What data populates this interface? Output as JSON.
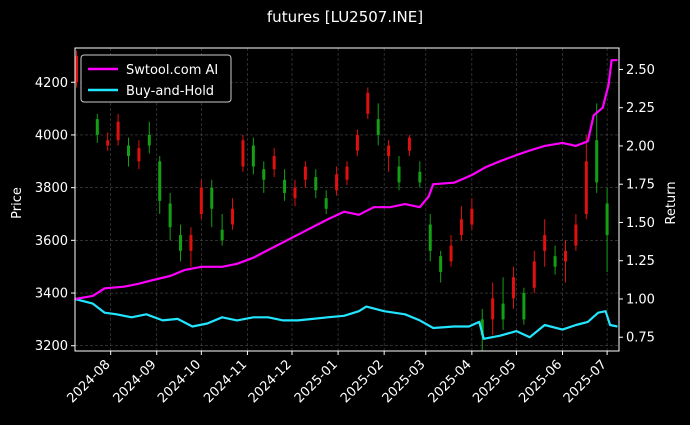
{
  "chart_data": {
    "type": "line",
    "title": "futures [LU2507.INE]",
    "ylabel_left": "Price",
    "ylabel_right": "Return",
    "xlabel": "",
    "x_ticks": [
      "2024-08",
      "2024-09",
      "2024-10",
      "2024-11",
      "2024-12",
      "2025-01",
      "2025-02",
      "2025-03",
      "2025-04",
      "2025-05",
      "2025-06",
      "2025-07"
    ],
    "x_range": [
      "2024-07-08",
      "2025-07-09"
    ],
    "ylim_left": [
      3180,
      4330
    ],
    "ylim_right": [
      0.66,
      2.64
    ],
    "y_ticks_left": [
      3200,
      3400,
      3600,
      3800,
      4000,
      4200
    ],
    "y_ticks_right": [
      0.75,
      1.0,
      1.25,
      1.5,
      1.75,
      2.0,
      2.25,
      2.5
    ],
    "y_tick_labels_right": [
      "0.75",
      "1.00",
      "1.25",
      "1.50",
      "1.75",
      "2.00",
      "2.25",
      "2.50"
    ],
    "grid": true,
    "legend_position": "top-left",
    "colors": {
      "ai": "#ff00ff",
      "bh": "#22e5ff",
      "up": "#e01010",
      "down": "#14a014",
      "grid": "#4a4a4a"
    },
    "series": [
      {
        "name": "Swtool.com AI",
        "axis": "right",
        "points": [
          [
            "2024-07-08",
            1.0
          ],
          [
            "2024-07-20",
            1.02
          ],
          [
            "2024-07-28",
            1.07
          ],
          [
            "2024-08-10",
            1.08
          ],
          [
            "2024-08-20",
            1.1
          ],
          [
            "2024-08-28",
            1.12
          ],
          [
            "2024-09-10",
            1.15
          ],
          [
            "2024-09-20",
            1.19
          ],
          [
            "2024-10-01",
            1.21
          ],
          [
            "2024-10-15",
            1.21
          ],
          [
            "2024-10-25",
            1.23
          ],
          [
            "2024-11-05",
            1.27
          ],
          [
            "2024-11-15",
            1.32
          ],
          [
            "2024-11-25",
            1.37
          ],
          [
            "2024-12-05",
            1.42
          ],
          [
            "2024-12-15",
            1.47
          ],
          [
            "2024-12-25",
            1.52
          ],
          [
            "2025-01-05",
            1.57
          ],
          [
            "2025-01-15",
            1.55
          ],
          [
            "2025-01-25",
            1.6
          ],
          [
            "2025-02-05",
            1.6
          ],
          [
            "2025-02-15",
            1.62
          ],
          [
            "2025-02-25",
            1.6
          ],
          [
            "2025-03-03",
            1.67
          ],
          [
            "2025-03-06",
            1.75
          ],
          [
            "2025-03-20",
            1.76
          ],
          [
            "2025-04-01",
            1.81
          ],
          [
            "2025-04-10",
            1.86
          ],
          [
            "2025-04-20",
            1.9
          ],
          [
            "2025-05-01",
            1.94
          ],
          [
            "2025-05-10",
            1.97
          ],
          [
            "2025-05-20",
            2.0
          ],
          [
            "2025-06-01",
            2.02
          ],
          [
            "2025-06-10",
            2.0
          ],
          [
            "2025-06-18",
            2.03
          ],
          [
            "2025-06-22",
            2.2
          ],
          [
            "2025-06-28",
            2.25
          ],
          [
            "2025-07-02",
            2.4
          ],
          [
            "2025-07-04",
            2.56
          ],
          [
            "2025-07-08",
            2.56
          ]
        ]
      },
      {
        "name": "Buy-and-Hold",
        "axis": "right",
        "points": [
          [
            "2024-07-08",
            1.0
          ],
          [
            "2024-07-20",
            0.97
          ],
          [
            "2024-07-28",
            0.91
          ],
          [
            "2024-08-05",
            0.9
          ],
          [
            "2024-08-15",
            0.88
          ],
          [
            "2024-08-25",
            0.9
          ],
          [
            "2024-09-05",
            0.86
          ],
          [
            "2024-09-15",
            0.87
          ],
          [
            "2024-09-25",
            0.82
          ],
          [
            "2024-10-05",
            0.84
          ],
          [
            "2024-10-15",
            0.88
          ],
          [
            "2024-10-25",
            0.86
          ],
          [
            "2024-11-05",
            0.88
          ],
          [
            "2024-11-15",
            0.88
          ],
          [
            "2024-11-25",
            0.86
          ],
          [
            "2024-12-05",
            0.86
          ],
          [
            "2024-12-15",
            0.87
          ],
          [
            "2024-12-25",
            0.88
          ],
          [
            "2025-01-05",
            0.89
          ],
          [
            "2025-01-15",
            0.92
          ],
          [
            "2025-01-20",
            0.95
          ],
          [
            "2025-02-01",
            0.92
          ],
          [
            "2025-02-15",
            0.9
          ],
          [
            "2025-02-25",
            0.86
          ],
          [
            "2025-03-06",
            0.81
          ],
          [
            "2025-03-20",
            0.82
          ],
          [
            "2025-03-30",
            0.82
          ],
          [
            "2025-04-06",
            0.85
          ],
          [
            "2025-04-09",
            0.74
          ],
          [
            "2025-04-20",
            0.76
          ],
          [
            "2025-05-01",
            0.79
          ],
          [
            "2025-05-10",
            0.75
          ],
          [
            "2025-05-20",
            0.83
          ],
          [
            "2025-06-01",
            0.8
          ],
          [
            "2025-06-10",
            0.83
          ],
          [
            "2025-06-18",
            0.85
          ],
          [
            "2025-06-25",
            0.91
          ],
          [
            "2025-06-30",
            0.92
          ],
          [
            "2025-07-03",
            0.83
          ],
          [
            "2025-07-08",
            0.82
          ]
        ]
      },
      {
        "name": "",
        "type": "candlestick",
        "axis": "left",
        "candles": [
          [
            "2024-07-09",
            4200,
            4300,
            4180,
            4320
          ],
          [
            "2024-07-16",
            4180,
            4160,
            4130,
            4210
          ],
          [
            "2024-07-23",
            4060,
            4000,
            3970,
            4080
          ],
          [
            "2024-07-30",
            3960,
            3980,
            3940,
            4010
          ],
          [
            "2024-08-06",
            3980,
            4050,
            3960,
            4080
          ],
          [
            "2024-08-13",
            3960,
            3920,
            3880,
            3990
          ],
          [
            "2024-08-20",
            3900,
            3950,
            3870,
            3980
          ],
          [
            "2024-08-27",
            4000,
            3960,
            3930,
            4050
          ],
          [
            "2024-09-03",
            3900,
            3750,
            3700,
            3920
          ],
          [
            "2024-09-10",
            3740,
            3650,
            3600,
            3780
          ],
          [
            "2024-09-17",
            3620,
            3560,
            3520,
            3660
          ],
          [
            "2024-09-24",
            3560,
            3620,
            3500,
            3650
          ],
          [
            "2024-10-01",
            3700,
            3800,
            3680,
            3830
          ],
          [
            "2024-10-08",
            3800,
            3720,
            3650,
            3830
          ],
          [
            "2024-10-15",
            3640,
            3600,
            3580,
            3700
          ],
          [
            "2024-10-22",
            3660,
            3720,
            3640,
            3760
          ],
          [
            "2024-10-29",
            3880,
            3980,
            3860,
            4000
          ],
          [
            "2024-11-05",
            3960,
            3880,
            3850,
            3990
          ],
          [
            "2024-11-12",
            3870,
            3830,
            3780,
            3900
          ],
          [
            "2024-11-19",
            3870,
            3920,
            3840,
            3950
          ],
          [
            "2024-11-26",
            3830,
            3780,
            3750,
            3870
          ],
          [
            "2024-12-03",
            3760,
            3800,
            3730,
            3830
          ],
          [
            "2024-12-10",
            3830,
            3880,
            3800,
            3900
          ],
          [
            "2024-12-17",
            3840,
            3790,
            3760,
            3870
          ],
          [
            "2024-12-24",
            3760,
            3720,
            3700,
            3790
          ],
          [
            "2024-12-31",
            3790,
            3850,
            3770,
            3880
          ],
          [
            "2025-01-07",
            3830,
            3880,
            3810,
            3900
          ],
          [
            "2025-01-14",
            3940,
            4000,
            3920,
            4020
          ],
          [
            "2025-01-21",
            4080,
            4160,
            4060,
            4180
          ],
          [
            "2025-01-28",
            4060,
            4000,
            3960,
            4120
          ],
          [
            "2025-02-04",
            3920,
            3960,
            3860,
            3980
          ],
          [
            "2025-02-11",
            3880,
            3820,
            3790,
            3920
          ],
          [
            "2025-02-18",
            3940,
            3990,
            3920,
            4000
          ],
          [
            "2025-02-25",
            3860,
            3820,
            3800,
            3900
          ],
          [
            "2025-03-04",
            3660,
            3560,
            3520,
            3700
          ],
          [
            "2025-03-11",
            3540,
            3480,
            3440,
            3560
          ],
          [
            "2025-03-18",
            3520,
            3580,
            3500,
            3620
          ],
          [
            "2025-03-25",
            3620,
            3680,
            3600,
            3730
          ],
          [
            "2025-04-01",
            3660,
            3720,
            3640,
            3760
          ],
          [
            "2025-04-08",
            3300,
            3240,
            3180,
            3340
          ],
          [
            "2025-04-15",
            3300,
            3380,
            3240,
            3440
          ],
          [
            "2025-04-22",
            3360,
            3300,
            3260,
            3460
          ],
          [
            "2025-04-29",
            3380,
            3460,
            3340,
            3500
          ],
          [
            "2025-05-06",
            3400,
            3300,
            3280,
            3420
          ],
          [
            "2025-05-13",
            3420,
            3520,
            3400,
            3560
          ],
          [
            "2025-05-20",
            3560,
            3620,
            3500,
            3680
          ],
          [
            "2025-05-27",
            3540,
            3500,
            3470,
            3580
          ],
          [
            "2025-06-03",
            3520,
            3560,
            3440,
            3600
          ],
          [
            "2025-06-10",
            3580,
            3660,
            3560,
            3700
          ],
          [
            "2025-06-17",
            3700,
            3900,
            3680,
            4000
          ],
          [
            "2025-06-24",
            3980,
            3820,
            3780,
            4120
          ],
          [
            "2025-07-01",
            3740,
            3620,
            3480,
            3800
          ]
        ]
      }
    ]
  }
}
